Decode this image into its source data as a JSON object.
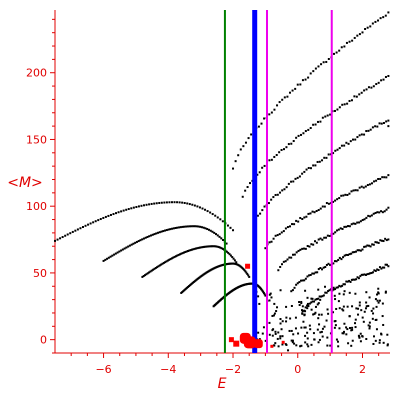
{
  "chart_data": {
    "type": "scatter",
    "title": "",
    "xlabel": "E",
    "ylabel": "<M>",
    "xlim": [
      -7.5,
      2.85
    ],
    "ylim": [
      -10,
      247
    ],
    "grid": false,
    "xticks": [
      -6,
      -4,
      -2,
      0,
      2
    ],
    "yticks": [
      0,
      50,
      100,
      150,
      200
    ],
    "axis_color": "#e00000",
    "vertical_lines": [
      {
        "x": -2.25,
        "color": "#008000",
        "width": "thin"
      },
      {
        "x": -1.33,
        "color": "#0000ff",
        "width": "thick"
      },
      {
        "x": -0.95,
        "color": "#ee00ee",
        "width": "thin"
      },
      {
        "x": 1.05,
        "color": "#ee00ee",
        "width": "thin"
      }
    ],
    "series": [
      {
        "color": "#000000",
        "marker": "dot",
        "curves": [
          {
            "x_start": -7.5,
            "x_end": -2.0,
            "peak_x": -3.8,
            "peak_y": 103,
            "y_start": 74,
            "y_end": 82
          },
          {
            "x_start": -6.0,
            "x_end": -2.2,
            "peak_x": -3.2,
            "peak_y": 85,
            "y_start": 59,
            "y_end": 72
          },
          {
            "x_start": -4.8,
            "x_end": -1.9,
            "peak_x": -2.6,
            "peak_y": 70,
            "y_start": 47,
            "y_end": 58
          },
          {
            "x_start": -3.6,
            "x_end": -1.5,
            "peak_x": -2.0,
            "peak_y": 57,
            "y_start": 35,
            "y_end": 47
          },
          {
            "x_start": -2.6,
            "x_end": -1.0,
            "peak_x": -1.4,
            "peak_y": 42,
            "y_start": 25,
            "y_end": 33
          }
        ],
        "bands": [
          {
            "x_start": -2.0,
            "x_end": 2.8,
            "y_start": 128,
            "y_end": 245
          },
          {
            "x_start": -1.7,
            "x_end": 2.8,
            "y_start": 107,
            "y_end": 197
          },
          {
            "x_start": -1.3,
            "x_end": 2.8,
            "y_start": 88,
            "y_end": 165
          },
          {
            "x_start": -1.0,
            "x_end": 2.8,
            "y_start": 68,
            "y_end": 123
          },
          {
            "x_start": -0.6,
            "x_end": 2.8,
            "y_start": 52,
            "y_end": 98
          },
          {
            "x_start": -0.2,
            "x_end": 2.8,
            "y_start": 36,
            "y_end": 76
          },
          {
            "x_start": 0.2,
            "x_end": 2.8,
            "y_start": 22,
            "y_end": 56
          }
        ],
        "scatter_cloud": {
          "x_range": [
            -1.4,
            2.8
          ],
          "y_range": [
            -5,
            40
          ]
        },
        "isolated_points": [
          {
            "x": 2.8,
            "y": 160
          },
          {
            "x": -0.3,
            "y": -8
          }
        ]
      },
      {
        "color": "#ff0000",
        "marker": "square",
        "points": [
          {
            "x": -1.55,
            "y": 55,
            "size": 5
          },
          {
            "x": -2.05,
            "y": 0,
            "size": 5
          },
          {
            "x": -1.9,
            "y": -3,
            "size": 6
          },
          {
            "x": -1.62,
            "y": 1,
            "size": 11
          },
          {
            "x": -1.48,
            "y": -2,
            "size": 12
          },
          {
            "x": -1.22,
            "y": -3,
            "size": 9
          },
          {
            "x": -0.8,
            "y": -5,
            "size": 3
          },
          {
            "x": -0.45,
            "y": -2,
            "size": 3
          }
        ]
      }
    ]
  }
}
